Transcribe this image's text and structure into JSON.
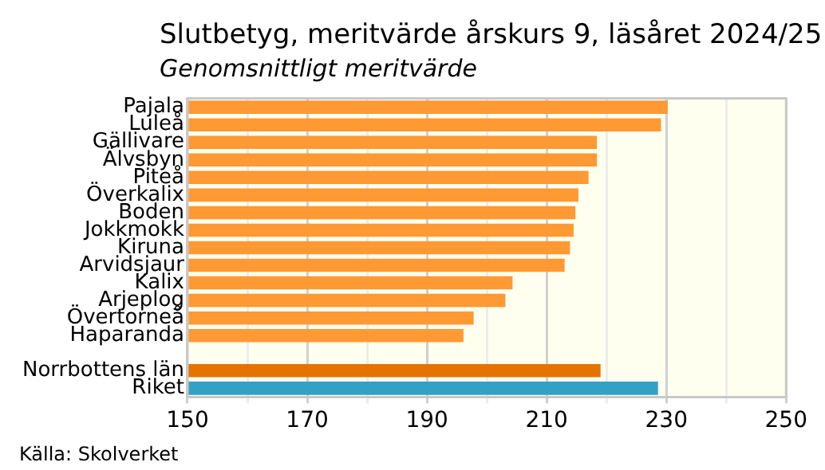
{
  "chart_data": {
    "type": "bar",
    "orientation": "horizontal",
    "title": "Slutbetyg, meritvärde årskurs 9, läsåret 2024/25",
    "subtitle": "Genomsnittligt meritvärde",
    "annotations": [
      "Källa: Skolverket"
    ],
    "categories": [
      "Pajala",
      "Luleå",
      "Gällivare",
      "Älvsbyn",
      "Piteå",
      "Överkalix",
      "Boden",
      "Jokkmokk",
      "Kiruna",
      "Arvidsjaur",
      "Kalix",
      "Arjeplog",
      "Övertorneå",
      "Haparanda",
      null,
      "Norrbottens län",
      "Riket"
    ],
    "values": [
      230.2,
      229.1,
      218.4,
      218.4,
      217.0,
      215.3,
      214.8,
      214.5,
      213.9,
      213.0,
      204.3,
      203.1,
      197.8,
      196.1,
      null,
      219.0,
      228.6
    ],
    "colors": [
      "#ff9933",
      "#ff9933",
      "#ff9933",
      "#ff9933",
      "#ff9933",
      "#ff9933",
      "#ff9933",
      "#ff9933",
      "#ff9933",
      "#ff9933",
      "#ff9933",
      "#ff9933",
      "#ff9933",
      "#ff9933",
      "#ff9933",
      "#e67300",
      "#33a0c8"
    ],
    "xlim": [
      150,
      250
    ],
    "xticks": [
      150,
      {
        "value": 160,
        "label": null
      },
      170,
      {
        "value": 180,
        "label": null
      },
      190,
      {
        "value": 200,
        "label": null
      },
      210,
      {
        "value": 220,
        "label": null
      },
      230,
      {
        "value": 240,
        "label": null
      },
      250
    ],
    "grid": "x",
    "legend": false
  }
}
